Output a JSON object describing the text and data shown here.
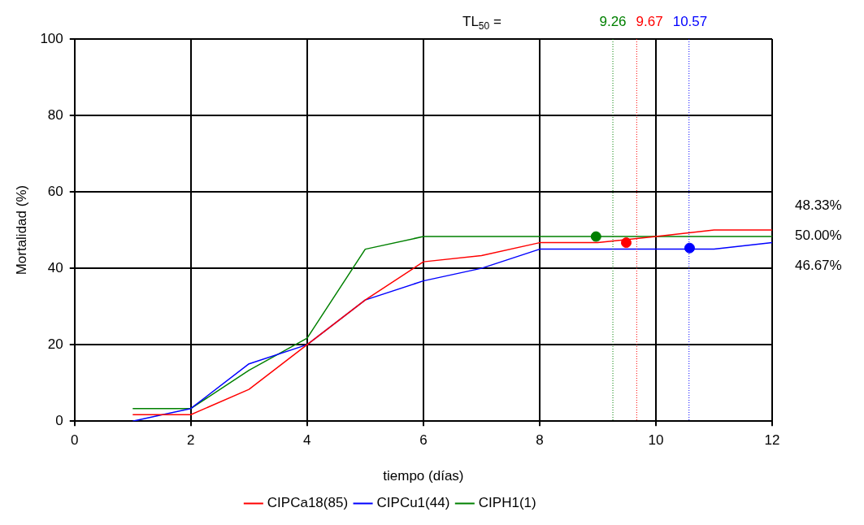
{
  "chart_data": {
    "type": "line",
    "xlabel": "tiempo (días)",
    "ylabel": "Mortalidad (%)",
    "xlim": [
      0,
      12
    ],
    "xticks": [
      0,
      2,
      4,
      6,
      8,
      10,
      12
    ],
    "ylim": [
      0,
      100
    ],
    "yticks": [
      0,
      20,
      40,
      60,
      80,
      100
    ],
    "grid": true,
    "legend": "bottom",
    "marker": "none",
    "line_style": "solid",
    "series": [
      {
        "name": "CIPCa18(85)",
        "color": "#ff0000",
        "x": [
          1,
          2,
          3,
          4,
          5,
          6,
          7,
          8,
          9,
          10,
          11,
          12
        ],
        "values": [
          1.7,
          1.7,
          8.3,
          20,
          31.7,
          41.7,
          43.3,
          46.7,
          46.7,
          48.3,
          50,
          50
        ]
      },
      {
        "name": "CIPCu1(44)",
        "color": "#0000ff",
        "x": [
          1,
          2,
          3,
          4,
          5,
          6,
          7,
          8,
          9,
          10,
          11,
          12
        ],
        "values": [
          0,
          3.3,
          15,
          20,
          31.7,
          36.7,
          40,
          45,
          45,
          45,
          45,
          46.7
        ]
      },
      {
        "name": "CIPH1(1)",
        "color": "#008000",
        "x": [
          1,
          2,
          3,
          4,
          5,
          6,
          7,
          8,
          9,
          10,
          11,
          12
        ],
        "values": [
          3.3,
          3.3,
          13.3,
          21.7,
          45,
          48.3,
          48.3,
          48.3,
          48.3,
          48.3,
          48.3,
          48.3
        ]
      },
      {
        "type": "scatter",
        "marker": "circle",
        "color": "#008000",
        "x": [
          8.97
        ],
        "values": [
          48.3
        ]
      },
      {
        "type": "scatter",
        "marker": "circle",
        "color": "#ff0000",
        "x": [
          9.49
        ],
        "values": [
          46.7
        ]
      },
      {
        "type": "scatter",
        "marker": "circle",
        "color": "#0000ff",
        "x": [
          10.58
        ],
        "values": [
          45.3
        ]
      }
    ],
    "ref_lines": [
      {
        "axis": "x",
        "value": 9.26,
        "label": "9.26",
        "color": "#008000",
        "line_style": "dotted"
      },
      {
        "axis": "x",
        "value": 9.67,
        "label": "9.67",
        "color": "#ff0000",
        "line_style": "dotted"
      },
      {
        "axis": "x",
        "value": 10.57,
        "label": "10.57",
        "color": "#0000ff",
        "line_style": "dotted"
      }
    ],
    "annotations": [
      "TL$_{50}$ =",
      "48.33%",
      "50.00%",
      "46.67%"
    ]
  }
}
